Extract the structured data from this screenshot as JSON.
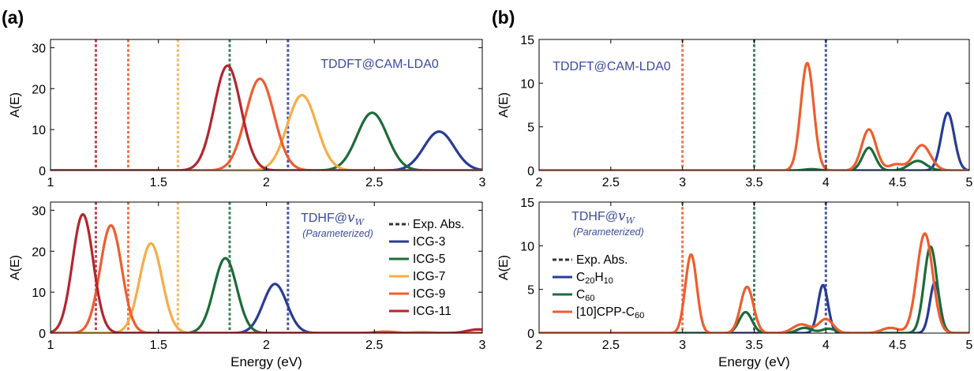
{
  "figure": {
    "exp_abs_label": "Exp. Abs."
  },
  "chart_data": [
    {
      "id": "a-top",
      "panel_letter": "(a)",
      "type": "line",
      "annotation_main": "TDDFT@CAM-LDA0",
      "annotation_sub": "",
      "annotation_color": "#3a4ba0",
      "xlabel": "",
      "ylabel": "A(E)",
      "xlim": [
        1,
        3
      ],
      "ylim": [
        0,
        32
      ],
      "xticks": [
        1,
        1.5,
        2,
        2.5,
        3
      ],
      "xtick_labels": [
        "1",
        "1.5",
        "2",
        "2.5",
        "3"
      ],
      "yticks": [
        0,
        10,
        20,
        30
      ],
      "ytick_labels": [
        "0",
        "10",
        "20",
        "30"
      ],
      "grid": false,
      "legend": "none",
      "series": [
        {
          "ref": "ICG-3",
          "color": "#283c94",
          "exp": 2.1,
          "peaks": [
            [
              2.8,
              9.5,
              0.07
            ]
          ]
        },
        {
          "ref": "ICG-5",
          "color": "#1d6b3a",
          "exp": 1.83,
          "peaks": [
            [
              2.49,
              14.1,
              0.07
            ]
          ]
        },
        {
          "ref": "ICG-7",
          "color": "#f6ad46",
          "exp": 1.59,
          "peaks": [
            [
              2.165,
              18.4,
              0.068
            ]
          ]
        },
        {
          "ref": "ICG-9",
          "color": "#ee5d2e",
          "exp": 1.36,
          "peaks": [
            [
              1.97,
              22.4,
              0.066
            ]
          ]
        },
        {
          "ref": "ICG-11",
          "color": "#b3262e",
          "exp": 1.21,
          "peaks": [
            [
              1.82,
              25.6,
              0.062
            ]
          ]
        }
      ]
    },
    {
      "id": "a-bottom",
      "panel_letter": "",
      "type": "line",
      "annotation_main": "TDHF@",
      "annotation_math": "v",
      "annotation_math_sub": "W",
      "annotation_sub": "(Parameterized)",
      "annotation_color": "#3a4ba0",
      "xlabel": "Energy (eV)",
      "ylabel": "A(E)",
      "xlim": [
        1,
        3
      ],
      "ylim": [
        0,
        32
      ],
      "xticks": [
        1,
        1.5,
        2,
        2.5,
        3
      ],
      "xtick_labels": [
        "1",
        "1.5",
        "2",
        "2.5",
        "3"
      ],
      "yticks": [
        0,
        10,
        20,
        30
      ],
      "ytick_labels": [
        "0",
        "10",
        "20",
        "30"
      ],
      "grid": false,
      "legend": "right",
      "series": [
        {
          "name": "ICG-3",
          "color": "#283c94",
          "exp": 2.1,
          "peaks": [
            [
              2.04,
              12.0,
              0.055
            ]
          ]
        },
        {
          "name": "ICG-5",
          "color": "#1d6b3a",
          "exp": 1.83,
          "peaks": [
            [
              1.81,
              18.3,
              0.053
            ]
          ]
        },
        {
          "name": "ICG-7",
          "color": "#f6ad46",
          "exp": 1.59,
          "peaks": [
            [
              1.465,
              21.9,
              0.052
            ],
            [
              2.72,
              0.25,
              0.05
            ]
          ]
        },
        {
          "name": "ICG-9",
          "color": "#ee5d2e",
          "exp": 1.36,
          "peaks": [
            [
              1.28,
              26.3,
              0.05
            ],
            [
              2.55,
              0.35,
              0.05
            ]
          ]
        },
        {
          "name": "ICG-11",
          "color": "#b3262e",
          "exp": 1.21,
          "peaks": [
            [
              1.15,
              29.0,
              0.048
            ],
            [
              2.98,
              0.9,
              0.05
            ]
          ]
        }
      ]
    },
    {
      "id": "b-top",
      "panel_letter": "(b)",
      "type": "line",
      "annotation_main": "TDDFT@CAM-LDA0",
      "annotation_sub": "",
      "annotation_color": "#3a4ba0",
      "xlabel": "",
      "ylabel": "A(E)",
      "xlim": [
        2,
        5
      ],
      "ylim": [
        0,
        15
      ],
      "xticks": [
        2,
        2.5,
        3,
        3.5,
        4,
        4.5,
        5
      ],
      "xtick_labels": [
        "2",
        "2.5",
        "3",
        "3.5",
        "4",
        "4.5",
        "5"
      ],
      "yticks": [
        0,
        5,
        10,
        15
      ],
      "ytick_labels": [
        "0",
        "5",
        "10",
        "15"
      ],
      "grid": false,
      "legend": "none",
      "series": [
        {
          "ref": "C20H10",
          "color": "#283c94",
          "exp": 4.0,
          "peaks": [
            [
              4.85,
              6.6,
              0.045
            ]
          ]
        },
        {
          "ref": "C60",
          "color": "#1d6b3a",
          "exp": 3.5,
          "peaks": [
            [
              4.3,
              2.6,
              0.045
            ],
            [
              4.64,
              1.1,
              0.06
            ],
            [
              3.9,
              0.15,
              0.05
            ]
          ]
        },
        {
          "ref": "[10]CPP-C60",
          "color": "#ee5d2e",
          "exp": 3.0,
          "peaks": [
            [
              3.87,
              12.3,
              0.045
            ],
            [
              4.3,
              4.7,
              0.05
            ],
            [
              4.67,
              2.9,
              0.06
            ],
            [
              4.49,
              0.7,
              0.05
            ]
          ]
        }
      ]
    },
    {
      "id": "b-bottom",
      "panel_letter": "",
      "type": "line",
      "annotation_main": "TDHF@",
      "annotation_math": "v",
      "annotation_math_sub": "W",
      "annotation_sub": "(Parameterized)",
      "annotation_color": "#3a4ba0",
      "xlabel": "Energy (eV)",
      "ylabel": "A(E)",
      "xlim": [
        2,
        5
      ],
      "ylim": [
        0,
        15
      ],
      "xticks": [
        2,
        2.5,
        3,
        3.5,
        4,
        4.5,
        5
      ],
      "xtick_labels": [
        "2",
        "2.5",
        "3",
        "3.5",
        "4",
        "4.5",
        "5"
      ],
      "yticks": [
        0,
        5,
        10,
        15
      ],
      "ytick_labels": [
        "0",
        "5",
        "10",
        "15"
      ],
      "grid": false,
      "legend": "left",
      "series": [
        {
          "name_parts": [
            [
              "C",
              ""
            ],
            [
              "20",
              "sub"
            ],
            [
              "H",
              ""
            ],
            [
              "10",
              "sub"
            ]
          ],
          "color": "#283c94",
          "exp": 4.0,
          "peaks": [
            [
              3.98,
              5.5,
              0.035
            ],
            [
              4.76,
              5.8,
              0.035
            ]
          ]
        },
        {
          "name_parts": [
            [
              "C",
              ""
            ],
            [
              "60",
              "sub"
            ]
          ],
          "color": "#1d6b3a",
          "exp": 3.5,
          "peaks": [
            [
              3.44,
              2.4,
              0.045
            ],
            [
              4.73,
              9.9,
              0.045
            ],
            [
              3.85,
              0.6,
              0.05
            ],
            [
              4.02,
              0.5,
              0.05
            ]
          ]
        },
        {
          "name_parts": [
            [
              "[10]CPP-C",
              ""
            ],
            [
              "60",
              "sub"
            ]
          ],
          "color": "#ee5d2e",
          "exp": 3.0,
          "peaks": [
            [
              3.06,
              9.0,
              0.04
            ],
            [
              3.45,
              5.3,
              0.045
            ],
            [
              3.83,
              1.0,
              0.06
            ],
            [
              4.0,
              1.6,
              0.05
            ],
            [
              4.69,
              11.4,
              0.055
            ],
            [
              4.45,
              0.6,
              0.06
            ]
          ]
        }
      ]
    }
  ]
}
